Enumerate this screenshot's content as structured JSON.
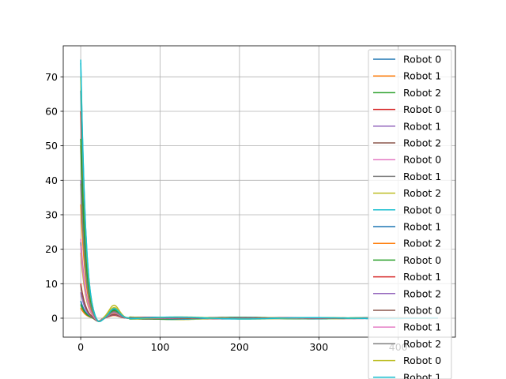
{
  "chart_data": {
    "type": "line",
    "title": "",
    "xlabel": "",
    "ylabel": "",
    "xlim": [
      -22,
      472
    ],
    "ylim": [
      -5.5,
      79
    ],
    "x_ticks": [
      0,
      100,
      200,
      300,
      400
    ],
    "y_ticks": [
      0,
      10,
      20,
      30,
      40,
      50,
      60,
      70
    ],
    "grid": true,
    "legend_position": "upper-right",
    "x_max": 450,
    "series": [
      {
        "name": "Robot 0",
        "color": "#1f77b4",
        "start": 5,
        "osc": 2.5
      },
      {
        "name": "Robot 1",
        "color": "#ff7f0e",
        "start": 3,
        "osc": 0.8
      },
      {
        "name": "Robot 2",
        "color": "#2ca02c",
        "start": 4,
        "osc": 0.9
      },
      {
        "name": "Robot 0",
        "color": "#d62728",
        "start": 60,
        "osc": 2.0
      },
      {
        "name": "Robot 1",
        "color": "#9467bd",
        "start": 40,
        "osc": 1.8
      },
      {
        "name": "Robot 2",
        "color": "#8c564b",
        "start": 50,
        "osc": 2.2
      },
      {
        "name": "Robot 0",
        "color": "#e377c2",
        "start": 23,
        "osc": 1.2
      },
      {
        "name": "Robot 1",
        "color": "#7f7f7f",
        "start": 22,
        "osc": 1.4
      },
      {
        "name": "Robot 2",
        "color": "#bcbd22",
        "start": 19,
        "osc": 3.8
      },
      {
        "name": "Robot 0",
        "color": "#17becf",
        "start": 75,
        "osc": 3.0
      },
      {
        "name": "Robot 1",
        "color": "#1f77b4",
        "start": 66,
        "osc": 2.6
      },
      {
        "name": "Robot 2",
        "color": "#ff7f0e",
        "start": 33,
        "osc": 1.5
      },
      {
        "name": "Robot 0",
        "color": "#2ca02c",
        "start": 52,
        "osc": 2.4
      },
      {
        "name": "Robot 1",
        "color": "#d62728",
        "start": 10,
        "osc": 0.9
      },
      {
        "name": "Robot 2",
        "color": "#9467bd",
        "start": 7.5,
        "osc": 1.0
      },
      {
        "name": "Robot 0",
        "color": "#8c564b",
        "start": 9.5,
        "osc": 1.1
      },
      {
        "name": "Robot 1",
        "color": "#e377c2",
        "start": 21,
        "osc": 1.6
      },
      {
        "name": "Robot 2",
        "color": "#7f7f7f",
        "start": 39,
        "osc": 1.9
      },
      {
        "name": "Robot 0",
        "color": "#bcbd22",
        "start": 70,
        "osc": 3.2
      },
      {
        "name": "Robot 1",
        "color": "#17becf",
        "start": 74,
        "osc": 2.9
      }
    ]
  }
}
